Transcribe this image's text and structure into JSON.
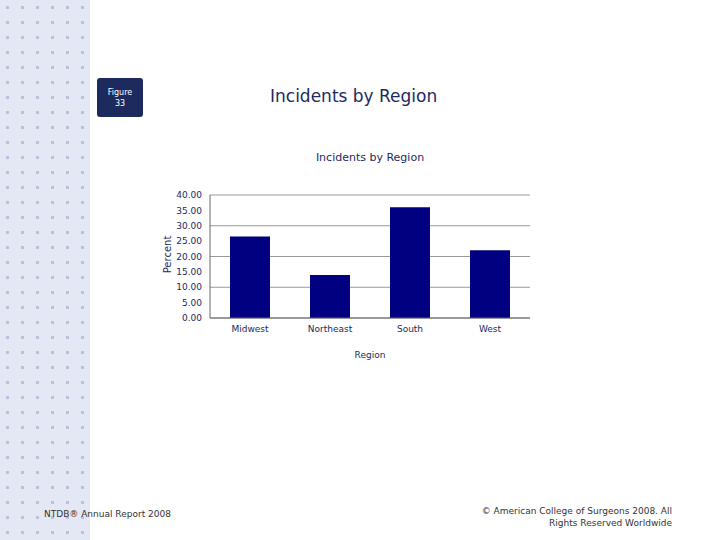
{
  "slide": {
    "figure_label": "Figure 33",
    "title": "Incidents by Region",
    "footer_left": "NTDB® Annual Report 2008",
    "footer_right": "© American College of Surgeons 2008. All Rights Reserved Worldwide"
  },
  "chart_data": {
    "type": "bar",
    "title": "Incidents by Region",
    "x_label": "Region",
    "y_label": "Percent",
    "categories": [
      "Midwest",
      "Northeast",
      "South",
      "West"
    ],
    "values": [
      26.5,
      14,
      36,
      22
    ],
    "color": "#000080",
    "ylim": [
      0,
      40
    ],
    "yticks": [
      {
        "value": 0,
        "label": "0.00"
      },
      {
        "value": 5,
        "label": "5.00"
      },
      {
        "value": 10,
        "label": "10.00"
      },
      {
        "value": 15,
        "label": "15.00"
      },
      {
        "value": 20,
        "label": "20.00"
      },
      {
        "value": 25,
        "label": "25.00"
      },
      {
        "value": 30,
        "label": "30.00"
      },
      {
        "value": 35,
        "label": "35.00"
      },
      {
        "value": 40,
        "label": "40.00"
      }
    ],
    "grid": true
  }
}
